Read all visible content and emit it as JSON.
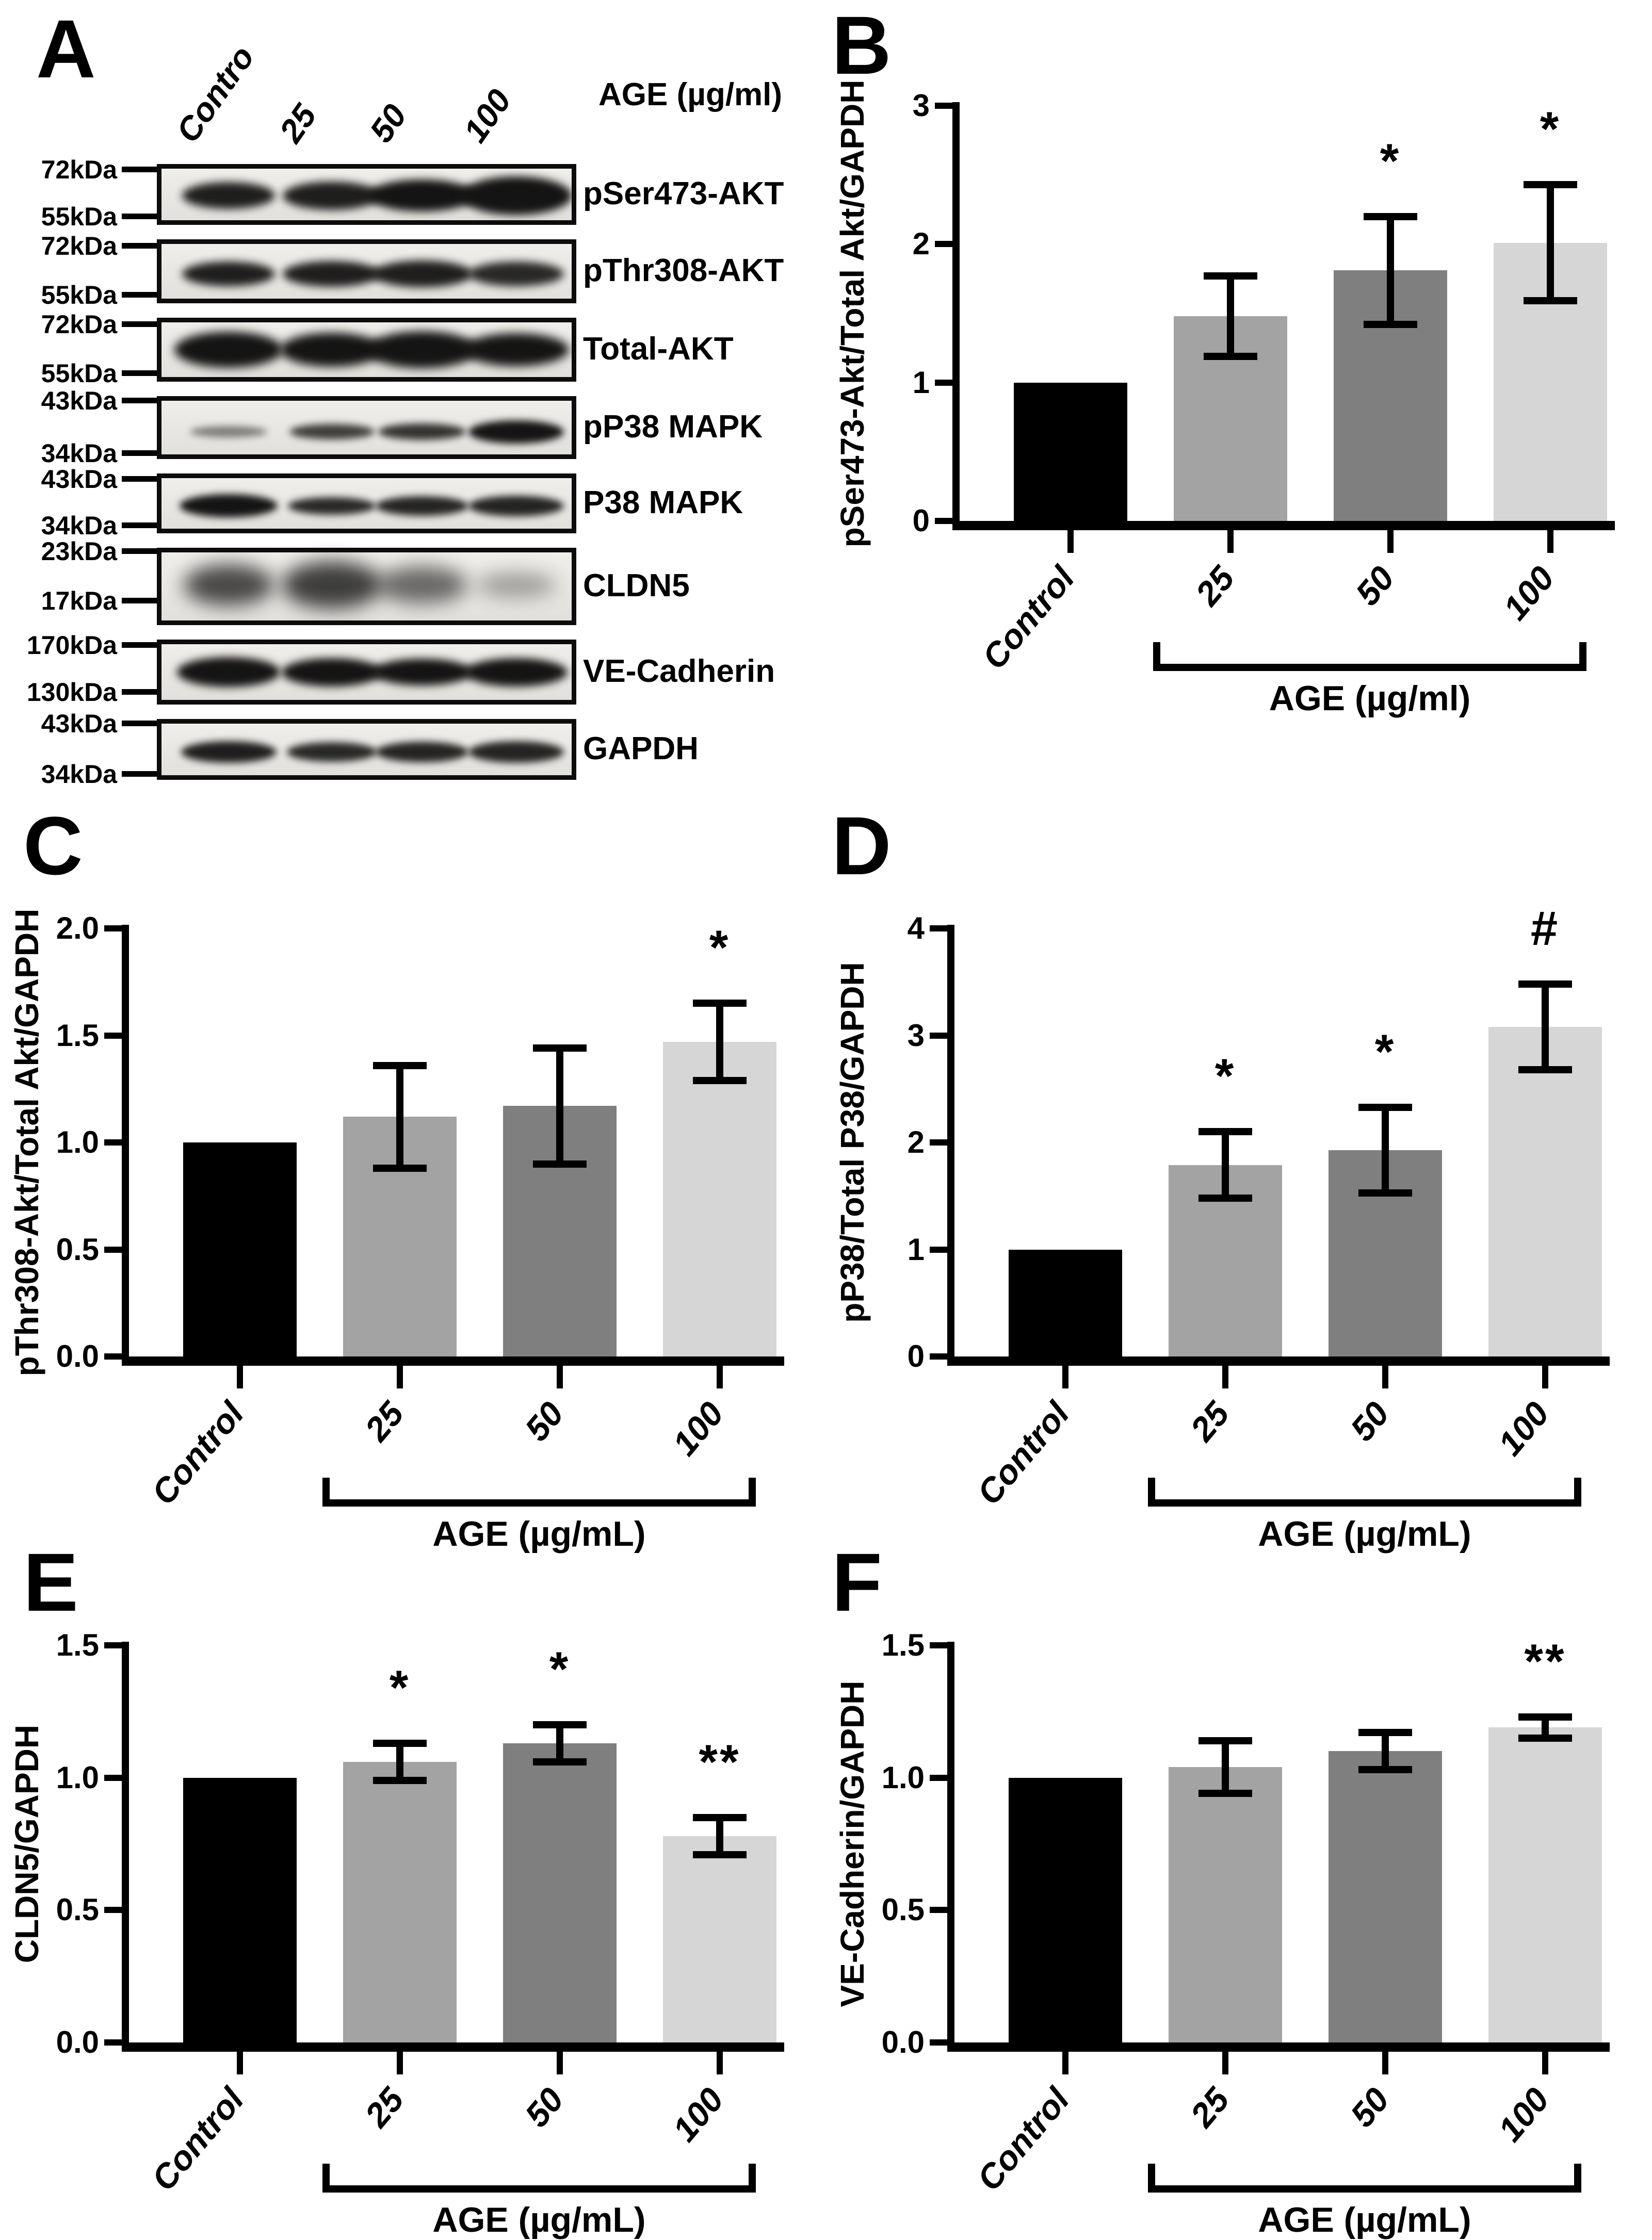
{
  "colors": {
    "background": "#ffffff",
    "axis": "#000000",
    "bar_control": "#000000",
    "bar_25": "#a3a3a3",
    "bar_50": "#7f7f7f",
    "bar_100": "#d6d6d6",
    "error_bar": "#0d0d0d"
  },
  "panel_a": {
    "letter": "A",
    "lane_labels": [
      "Contro",
      "25",
      "50",
      "100"
    ],
    "unit_label": "AGE (µg/ml)",
    "blots": [
      {
        "label": "pSer473-AKT",
        "marker_top": "72kDa",
        "marker_bottom": "55kDa",
        "band_y": 0.52,
        "blur": 8,
        "bands": [
          [
            180,
            52,
            0.95
          ],
          [
            190,
            55,
            0.95
          ],
          [
            210,
            62,
            1
          ],
          [
            215,
            75,
            1
          ]
        ]
      },
      {
        "label": "pThr308-AKT",
        "marker_top": "72kDa",
        "marker_bottom": "55kDa",
        "band_y": 0.55,
        "blur": 8,
        "bands": [
          [
            180,
            48,
            0.95
          ],
          [
            190,
            50,
            0.95
          ],
          [
            195,
            52,
            0.95
          ],
          [
            185,
            48,
            0.9
          ]
        ]
      },
      {
        "label": "Total-AKT",
        "marker_top": "72kDa",
        "marker_bottom": "55kDa",
        "band_y": 0.5,
        "blur": 9,
        "bands": [
          [
            210,
            70,
            1
          ],
          [
            200,
            66,
            1
          ],
          [
            215,
            72,
            1
          ],
          [
            205,
            64,
            1
          ]
        ]
      },
      {
        "label": "pP38 MAPK",
        "marker_top": "43kDa",
        "marker_bottom": "34kDa",
        "band_y": 0.58,
        "blur": 7,
        "bands": [
          [
            150,
            22,
            0.5
          ],
          [
            165,
            30,
            0.8
          ],
          [
            170,
            32,
            0.85
          ],
          [
            185,
            45,
            1
          ]
        ]
      },
      {
        "label": "P38 MAPK",
        "marker_top": "43kDa",
        "marker_bottom": "34kDa",
        "band_y": 0.55,
        "blur": 7,
        "bands": [
          [
            190,
            45,
            1
          ],
          [
            170,
            34,
            0.9
          ],
          [
            180,
            38,
            0.92
          ],
          [
            185,
            40,
            0.92
          ]
        ]
      },
      {
        "label": "CLDN5",
        "marker_top": "23kDa",
        "marker_bottom": "17kDa",
        "band_y": 0.48,
        "blur": 18,
        "bands": [
          [
            175,
            80,
            0.75
          ],
          [
            195,
            92,
            0.8
          ],
          [
            175,
            72,
            0.6
          ],
          [
            155,
            48,
            0.35
          ]
        ]
      },
      {
        "label": "VE-Cadherin",
        "marker_top": "170kDa",
        "marker_bottom": "130kDa",
        "band_y": 0.5,
        "blur": 8,
        "bands": [
          [
            200,
            58,
            1
          ],
          [
            195,
            55,
            1
          ],
          [
            195,
            52,
            1
          ],
          [
            200,
            55,
            1
          ]
        ]
      },
      {
        "label": "GAPDH",
        "marker_top": "43kDa",
        "marker_bottom": "34kDa",
        "band_y": 0.55,
        "blur": 7,
        "bands": [
          [
            185,
            42,
            0.95
          ],
          [
            175,
            38,
            0.9
          ],
          [
            180,
            40,
            0.92
          ],
          [
            185,
            42,
            0.92
          ]
        ]
      }
    ]
  },
  "chart_data": [
    {
      "panel": "B",
      "type": "bar",
      "ylabel": "pSer473-Akt/Total Akt/GAPDH",
      "categories": [
        "Control",
        "25",
        "50",
        "100"
      ],
      "values": [
        1.0,
        1.48,
        1.81,
        2.01
      ],
      "errors": [
        0,
        0.29,
        0.39,
        0.42
      ],
      "significance": [
        "",
        "",
        "*",
        "*"
      ],
      "ylim": [
        0,
        3
      ],
      "yticks": [
        "0",
        "1",
        "2",
        "3"
      ],
      "group_label": "AGE (µg/ml)",
      "grid": false,
      "legend": false
    },
    {
      "panel": "C",
      "type": "bar",
      "ylabel": "pThr308-Akt/Total Akt/GAPDH",
      "categories": [
        "Control",
        "25",
        "50",
        "100"
      ],
      "values": [
        1.0,
        1.12,
        1.17,
        1.47
      ],
      "errors": [
        0,
        0.24,
        0.27,
        0.18
      ],
      "significance": [
        "",
        "",
        "",
        "*"
      ],
      "ylim": [
        0,
        2
      ],
      "yticks": [
        "0.0",
        "0.5",
        "1.0",
        "1.5",
        "2.0"
      ],
      "group_label": "AGE (µg/mL)",
      "grid": false,
      "legend": false
    },
    {
      "panel": "D",
      "type": "bar",
      "ylabel": "pP38/Total P38/GAPDH",
      "categories": [
        "Control",
        "25",
        "50",
        "100"
      ],
      "values": [
        1.0,
        1.79,
        1.93,
        3.08
      ],
      "errors": [
        0,
        0.31,
        0.4,
        0.4
      ],
      "significance": [
        "",
        "*",
        "*",
        "#"
      ],
      "ylim": [
        0,
        4
      ],
      "yticks": [
        "0",
        "1",
        "2",
        "3",
        "4"
      ],
      "group_label": "AGE (µg/mL)",
      "grid": false,
      "legend": false
    },
    {
      "panel": "E",
      "type": "bar",
      "ylabel": "CLDN5/GAPDH",
      "categories": [
        "Control",
        "25",
        "50",
        "100"
      ],
      "values": [
        1.0,
        1.06,
        1.13,
        0.78
      ],
      "errors": [
        0,
        0.07,
        0.07,
        0.07
      ],
      "significance": [
        "",
        "*",
        "*",
        "**"
      ],
      "ylim": [
        0,
        1.5
      ],
      "yticks": [
        "0.0",
        "0.5",
        "1.0",
        "1.5"
      ],
      "group_label": "AGE (µg/mL)",
      "grid": false,
      "legend": false
    },
    {
      "panel": "F",
      "type": "bar",
      "ylabel": "VE-Cadherin/GAPDH",
      "categories": [
        "Control",
        "25",
        "50",
        "100"
      ],
      "values": [
        1.0,
        1.04,
        1.1,
        1.19
      ],
      "errors": [
        0,
        0.1,
        0.07,
        0.04
      ],
      "significance": [
        "",
        "",
        "",
        "**"
      ],
      "ylim": [
        0,
        1.5
      ],
      "yticks": [
        "0.0",
        "0.5",
        "1.0",
        "1.5"
      ],
      "group_label": "AGE (µg/mL)",
      "grid": false,
      "legend": false
    }
  ]
}
